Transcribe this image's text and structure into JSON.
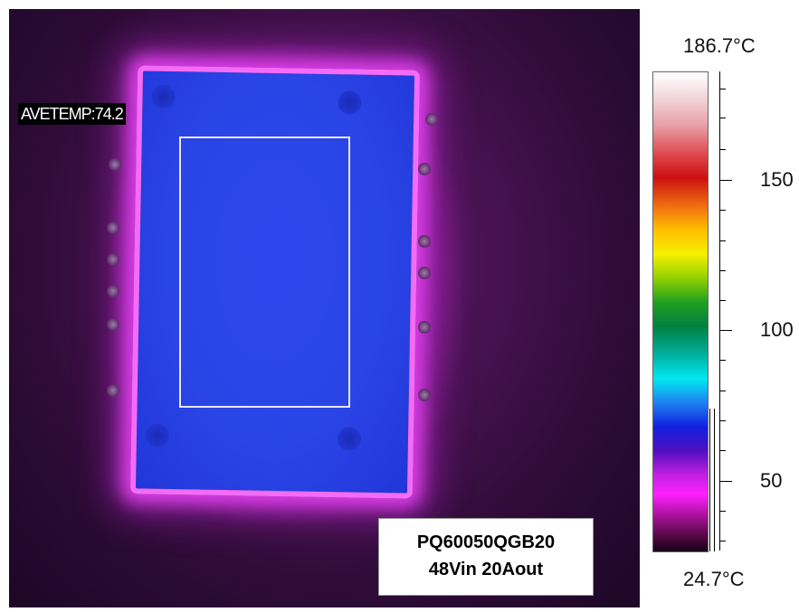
{
  "overlay": {
    "average_label": "AVETEMP:74.2"
  },
  "caption": {
    "line1": "PQ60050QGB20",
    "line2": "48Vin 20Aout"
  },
  "scale": {
    "max_label": "186.7°C",
    "min_label": "24.7°C",
    "tick_labels": [
      "150",
      "100",
      "50"
    ]
  },
  "colors": {
    "module": "#2a45e6",
    "outline_glow": "#f36cf7",
    "background": "#2c0b35",
    "roi_box": "#e8e8f5"
  }
}
